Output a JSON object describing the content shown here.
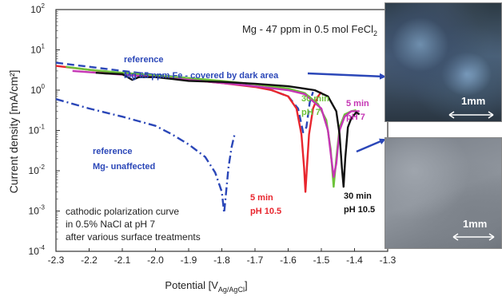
{
  "chart_data": {
    "type": "line",
    "title": "Mg - 47 ppm in 0.5 mol FeCl",
    "title_subscript": "2",
    "xlabel": "Potential [V",
    "xlabel_subscript": "Ag/AgCl",
    "xlabel_suffix": "]",
    "ylabel": "Current density [mA/cm²]",
    "xlim": [
      -2.3,
      -1.3
    ],
    "ylim_log10": [
      -4,
      2
    ],
    "y_scale": "log",
    "x_ticks": [
      -2.3,
      -2.2,
      -2.1,
      -2.0,
      -1.9,
      -1.8,
      -1.7,
      -1.6,
      -1.5,
      -1.4,
      -1.3
    ],
    "x_tick_labels": [
      "-2.3",
      "-2.2",
      "-2.1",
      "-2.0",
      "-1.9",
      "-1.8",
      "-1.7",
      "-1.6",
      "-1.5",
      "-1.4",
      "-1.3"
    ],
    "y_tick_labels": [
      {
        "base": "10",
        "exp": "2",
        "log": 2
      },
      {
        "base": "10",
        "exp": "1",
        "log": 1
      },
      {
        "base": "10",
        "exp": "0",
        "log": 0
      },
      {
        "base": "10",
        "exp": "-1",
        "log": -1
      },
      {
        "base": "10",
        "exp": "-2",
        "log": -2
      },
      {
        "base": "10",
        "exp": "-3",
        "log": -3
      },
      {
        "base": "10",
        "exp": "-4",
        "log": -4
      }
    ],
    "annotations": {
      "ref_top_1": "reference",
      "ref_top_2": "Mg 65 ppm Fe - covered by dark area",
      "ref_bot_1": "reference",
      "ref_bot_2": "Mg- unaffected",
      "green_1": "30 min",
      "green_2": "pH 7",
      "magenta_1": "5 min",
      "magenta_2": "pH 7",
      "red_1": "5 min",
      "red_2": "pH 10.5",
      "black_1": "30 min",
      "black_2": "pH 10.5",
      "desc_1": "cathodic polarization curve",
      "desc_2": "in 0.5% NaCl at pH 7",
      "desc_3": "after various surface treatments"
    },
    "series": [
      {
        "color": "#2b47b8",
        "dash": "dash",
        "points": [
          [
            -2.3,
            4.8
          ],
          [
            -2.2,
            3.8
          ],
          [
            -2.1,
            3.0
          ],
          [
            -2.0,
            2.4
          ],
          [
            -1.9,
            2.0
          ],
          [
            -1.8,
            1.6
          ],
          [
            -1.7,
            1.25
          ],
          [
            -1.65,
            1.0
          ],
          [
            -1.6,
            0.7
          ],
          [
            -1.57,
            0.35
          ],
          [
            -1.555,
            0.09
          ],
          [
            -1.545,
            0.12
          ],
          [
            -1.535,
            0.5
          ],
          [
            -1.525,
            0.9
          ]
        ]
      },
      {
        "color": "#2b47b8",
        "dash": "dashdot",
        "points": [
          [
            -2.3,
            0.6
          ],
          [
            -2.2,
            0.35
          ],
          [
            -2.1,
            0.22
          ],
          [
            -2.0,
            0.13
          ],
          [
            -1.95,
            0.08
          ],
          [
            -1.9,
            0.045
          ],
          [
            -1.85,
            0.022
          ],
          [
            -1.82,
            0.009
          ],
          [
            -1.8,
            0.003
          ],
          [
            -1.793,
            0.0009
          ],
          [
            -1.787,
            0.003
          ],
          [
            -1.78,
            0.012
          ],
          [
            -1.77,
            0.04
          ],
          [
            -1.76,
            0.09
          ]
        ]
      },
      {
        "color": "#e8262e",
        "dash": "solid",
        "points": [
          [
            -2.3,
            4.0
          ],
          [
            -2.2,
            3.2
          ],
          [
            -2.1,
            2.6
          ],
          [
            -2.0,
            2.1
          ],
          [
            -1.9,
            1.8
          ],
          [
            -1.8,
            1.5
          ],
          [
            -1.7,
            1.2
          ],
          [
            -1.65,
            1.0
          ],
          [
            -1.6,
            0.7
          ],
          [
            -1.575,
            0.35
          ],
          [
            -1.56,
            0.08
          ],
          [
            -1.552,
            0.012
          ],
          [
            -1.548,
            0.003
          ],
          [
            -1.544,
            0.01
          ],
          [
            -1.537,
            0.08
          ],
          [
            -1.525,
            0.35
          ],
          [
            -1.51,
            0.7
          ],
          [
            -1.5,
            0.9
          ]
        ]
      },
      {
        "color": "#6dc23a",
        "dash": "solid",
        "points": [
          [
            -2.27,
            3.8
          ],
          [
            -2.2,
            3.2
          ],
          [
            -2.1,
            2.7
          ],
          [
            -2.0,
            2.3
          ],
          [
            -1.9,
            2.0
          ],
          [
            -1.8,
            1.7
          ],
          [
            -1.7,
            1.4
          ],
          [
            -1.6,
            1.1
          ],
          [
            -1.55,
            0.85
          ],
          [
            -1.51,
            0.45
          ],
          [
            -1.485,
            0.18
          ],
          [
            -1.472,
            0.035
          ],
          [
            -1.463,
            0.004
          ],
          [
            -1.455,
            0.02
          ],
          [
            -1.445,
            0.12
          ],
          [
            -1.43,
            0.25
          ],
          [
            -1.41,
            0.3
          ],
          [
            -1.395,
            0.32
          ]
        ]
      },
      {
        "color": "#c536b4",
        "dash": "solid",
        "points": [
          [
            -2.25,
            3.0
          ],
          [
            -2.15,
            2.6
          ],
          [
            -2.0,
            2.1
          ],
          [
            -1.9,
            1.8
          ],
          [
            -1.8,
            1.5
          ],
          [
            -1.7,
            1.25
          ],
          [
            -1.6,
            1.0
          ],
          [
            -1.55,
            0.8
          ],
          [
            -1.5,
            0.35
          ],
          [
            -1.48,
            0.1
          ],
          [
            -1.47,
            0.02
          ],
          [
            -1.463,
            0.007
          ],
          [
            -1.455,
            0.015
          ],
          [
            -1.445,
            0.1
          ],
          [
            -1.43,
            0.22
          ],
          [
            -1.41,
            0.3
          ],
          [
            -1.385,
            0.3
          ]
        ]
      },
      {
        "color": "#111111",
        "dash": "solid",
        "points": [
          [
            -2.18,
            2.7
          ],
          [
            -2.15,
            2.6
          ],
          [
            -2.1,
            2.5
          ],
          [
            -2.07,
            1.8
          ],
          [
            -2.05,
            2.1
          ],
          [
            -2.0,
            2.1
          ],
          [
            -1.95,
            1.9
          ],
          [
            -1.9,
            1.7
          ],
          [
            -1.8,
            1.6
          ],
          [
            -1.7,
            1.45
          ],
          [
            -1.6,
            1.25
          ],
          [
            -1.52,
            1.0
          ],
          [
            -1.48,
            0.7
          ],
          [
            -1.455,
            0.3
          ],
          [
            -1.445,
            0.08
          ],
          [
            -1.438,
            0.012
          ],
          [
            -1.433,
            0.004
          ],
          [
            -1.428,
            0.02
          ],
          [
            -1.42,
            0.12
          ],
          [
            -1.41,
            0.2
          ],
          [
            -1.395,
            0.28
          ],
          [
            -1.385,
            0.25
          ]
        ]
      }
    ]
  },
  "photos": {
    "scale_top": "1mm",
    "scale_bottom": "1mm"
  }
}
